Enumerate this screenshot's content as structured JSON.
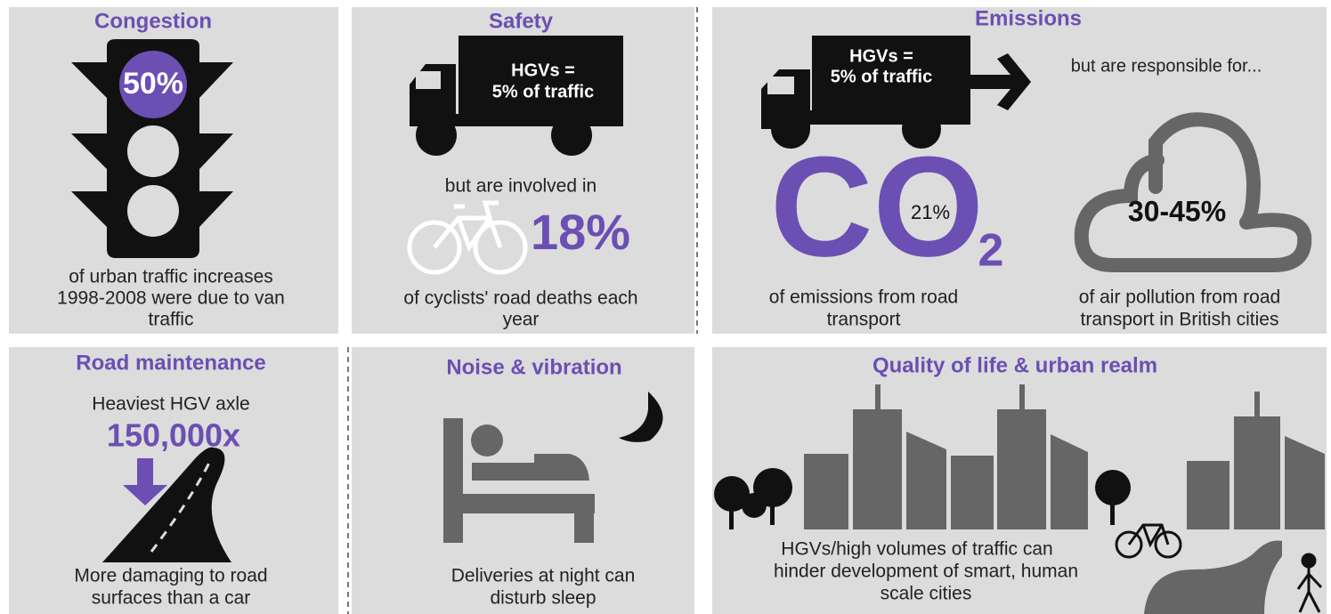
{
  "panels": [
    {
      "title": "Congestion",
      "figure": "50%",
      "caption": [
        "of urban traffic increases",
        "1998-2008 were due to van",
        "traffic"
      ]
    },
    {
      "title": "Safety",
      "truck": [
        "HGVs =",
        "5% of traffic"
      ],
      "lead": "but are involved in",
      "figure": "18%",
      "caption": [
        "of cyclists' road deaths each",
        "year"
      ]
    },
    {
      "title": "Emissions",
      "truck": [
        "HGVs =",
        "5% of traffic"
      ],
      "lead": "but are responsible for...",
      "co2": {
        "symbol": "CO",
        "subscript": "2",
        "figure": "21%"
      },
      "cloud_figure": "30-45%",
      "caption_left": [
        "of emissions from road",
        "transport"
      ],
      "caption_right": [
        "of air pollution from road",
        "transport in British cities"
      ]
    },
    {
      "title": "Road maintenance",
      "lead": "Heaviest HGV axle",
      "figure": "150,000x",
      "caption": [
        "More damaging to road",
        "surfaces than a car"
      ]
    },
    {
      "title": "Noise & vibration",
      "caption": [
        "Deliveries at night can",
        "disturb sleep"
      ]
    },
    {
      "title": "Quality of life & urban realm",
      "caption": [
        "HGVs/high volumes of traffic can",
        "hinder development of smart, human",
        "scale cities"
      ]
    }
  ]
}
